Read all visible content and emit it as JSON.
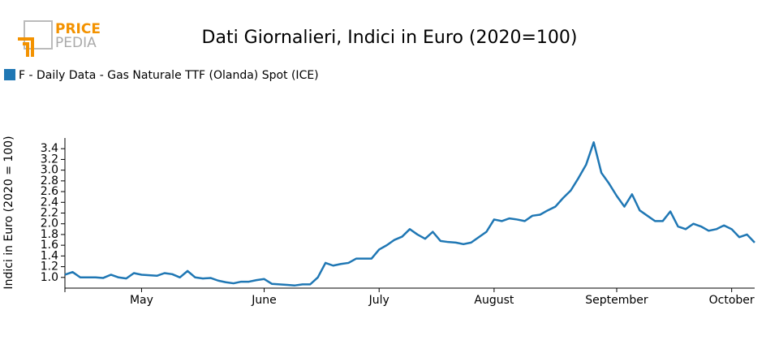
{
  "logo": {
    "line1": "PRICE",
    "line2": "PEDIA"
  },
  "chart_data": {
    "type": "line",
    "title": "Dati Giornalieri, Indici in Euro (2020=100)",
    "y_label": "Indici in Euro (2020 = 100)",
    "categories": [
      null,
      null,
      null,
      null,
      null,
      null,
      null,
      null,
      null,
      null,
      "May",
      null,
      null,
      null,
      null,
      null,
      null,
      null,
      null,
      null,
      null,
      null,
      null,
      null,
      null,
      null,
      "June",
      null,
      null,
      null,
      null,
      null,
      null,
      null,
      null,
      null,
      null,
      null,
      null,
      null,
      null,
      "July",
      null,
      null,
      null,
      null,
      null,
      null,
      null,
      null,
      null,
      null,
      null,
      null,
      null,
      null,
      "August",
      null,
      null,
      null,
      null,
      null,
      null,
      null,
      null,
      null,
      null,
      null,
      null,
      null,
      null,
      null,
      "September",
      null,
      null,
      null,
      null,
      null,
      null,
      null,
      null,
      null,
      null,
      null,
      null,
      null,
      null,
      "October",
      null,
      null,
      null
    ],
    "series": [
      {
        "name": "F - Daily Data - Gas Naturale TTF (Olanda) Spot (ICE)",
        "color": "#1f77b4",
        "values": [
          1.05,
          1.1,
          1.0,
          1.0,
          1.0,
          0.99,
          1.05,
          1.0,
          0.98,
          1.08,
          1.05,
          1.04,
          1.03,
          1.08,
          1.06,
          1.0,
          1.12,
          1.0,
          0.98,
          0.99,
          0.94,
          0.91,
          0.89,
          0.92,
          0.92,
          0.95,
          0.97,
          0.88,
          0.87,
          0.86,
          0.85,
          0.87,
          0.87,
          1.0,
          1.27,
          1.22,
          1.25,
          1.27,
          1.35,
          1.35,
          1.35,
          1.52,
          1.6,
          1.7,
          1.76,
          1.9,
          1.8,
          1.72,
          1.85,
          1.68,
          1.66,
          1.65,
          1.62,
          1.65,
          1.75,
          1.85,
          2.08,
          2.05,
          2.1,
          2.08,
          2.05,
          2.15,
          2.17,
          2.25,
          2.32,
          2.48,
          2.62,
          2.85,
          3.1,
          3.52,
          2.95,
          2.75,
          2.52,
          2.32,
          2.55,
          2.25,
          2.15,
          2.05,
          2.05,
          2.23,
          1.95,
          1.9,
          2.0,
          1.95,
          1.87,
          1.9,
          1.97,
          1.9,
          1.75,
          1.8,
          1.65
        ]
      }
    ],
    "ylim": [
      0.8,
      3.6
    ],
    "yticks": [
      {
        "value": 1,
        "label": "1.0"
      },
      1.2,
      1.4,
      1.6,
      1.8,
      {
        "value": 2,
        "label": "2.0"
      },
      2.2,
      2.4,
      2.6,
      2.8,
      {
        "value": 3,
        "label": "3.0"
      },
      3.2,
      3.4
    ],
    "legend": "top-left"
  }
}
